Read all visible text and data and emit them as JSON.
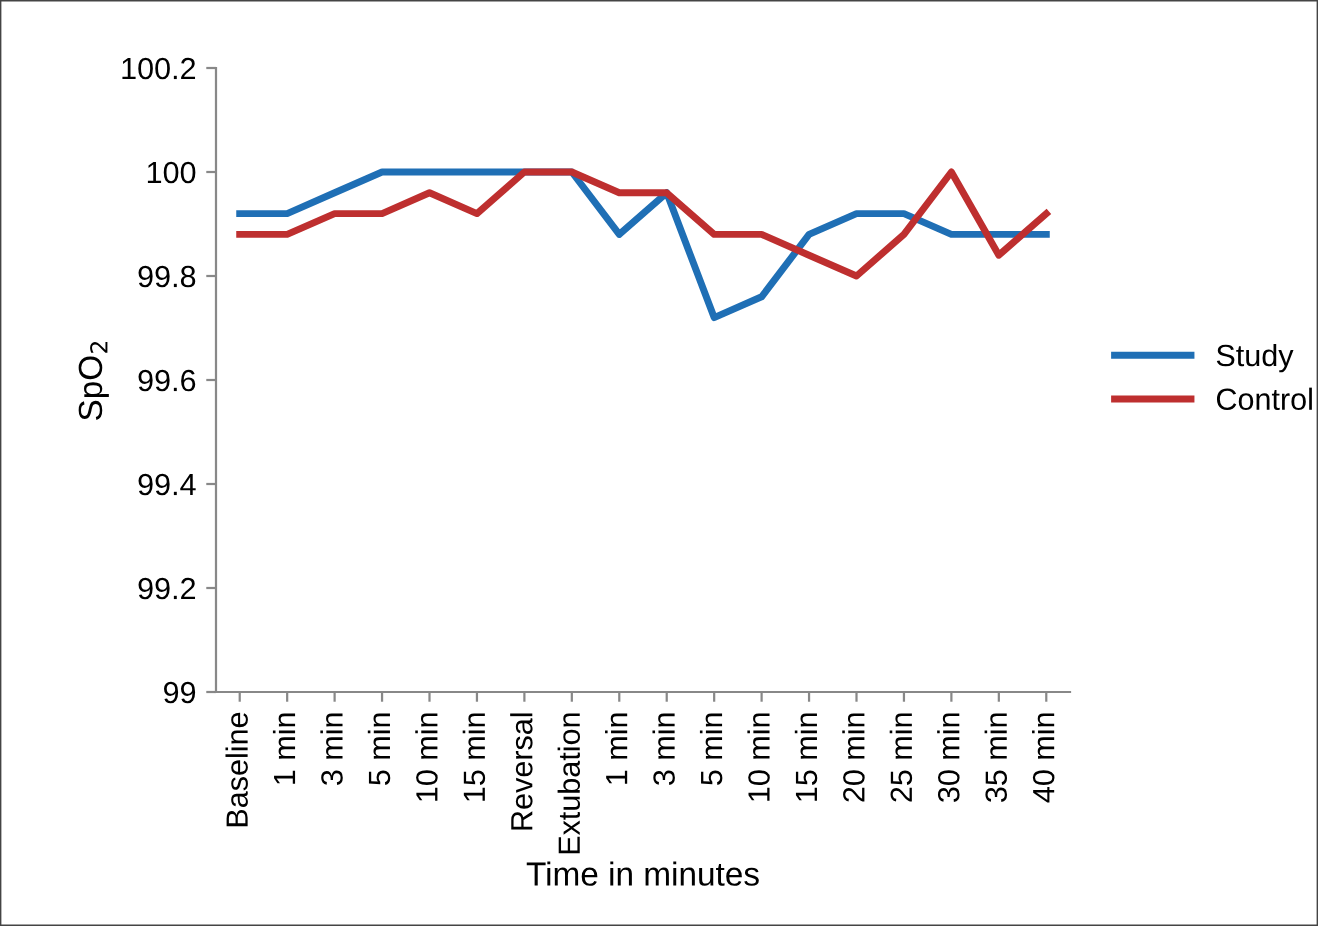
{
  "chart_data": {
    "type": "line",
    "xlabel": "Time in minutes",
    "ylabel": "SpO$_{2}$",
    "categories": [
      "Baseline",
      "1 min",
      "3 min",
      "5 min",
      "10 min",
      "15 min",
      "Reversal",
      "Extubation",
      "1 min",
      "3 min",
      "5 min",
      "10 min",
      "15 min",
      "20 min",
      "25 min",
      "30 min",
      "35 min",
      "40 min"
    ],
    "series": [
      {
        "name": "Study",
        "color": "#1f6fb5",
        "values": [
          99.92,
          99.92,
          99.96,
          100,
          100,
          100,
          100,
          100,
          99.88,
          99.96,
          99.72,
          99.76,
          99.88,
          99.92,
          99.92,
          99.88,
          99.88,
          99.88
        ]
      },
      {
        "name": "Control",
        "color": "#be2f2f",
        "values": [
          99.88,
          99.88,
          99.92,
          99.92,
          99.96,
          99.92,
          100,
          100,
          99.96,
          99.96,
          99.88,
          99.88,
          99.84,
          99.8,
          99.88,
          100,
          99.84,
          99.92
        ]
      }
    ],
    "ylim": [
      99,
      100.2
    ],
    "yticks": [
      99,
      99.2,
      99.4,
      99.6,
      99.8,
      100,
      100.2
    ],
    "grid": false,
    "legend": "right",
    "marker": "none",
    "line_style": "solid"
  }
}
